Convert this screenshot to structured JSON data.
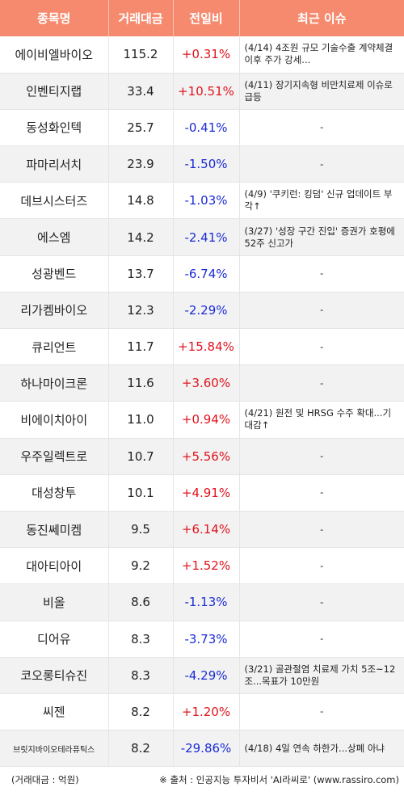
{
  "header": {
    "col_name": "종목명",
    "col_volume": "거래대금",
    "col_change": "전일비",
    "col_issue": "최근 이슈"
  },
  "rows": [
    {
      "name": "에이비엘바이오",
      "volume": "115.2",
      "change": "+0.31%",
      "direction": "up",
      "issue": "(4/14) 4조원 규모 기술수출 계약체결이후 주가 강세..."
    },
    {
      "name": "인벤티지랩",
      "volume": "33.4",
      "change": "+10.51%",
      "direction": "up",
      "issue": "(4/11) 장기지속형 비만치료제 이슈로 급등"
    },
    {
      "name": "동성화인텍",
      "volume": "25.7",
      "change": "-0.41%",
      "direction": "down",
      "issue": "-"
    },
    {
      "name": "파마리서치",
      "volume": "23.9",
      "change": "-1.50%",
      "direction": "down",
      "issue": "-"
    },
    {
      "name": "데브시스터즈",
      "volume": "14.8",
      "change": "-1.03%",
      "direction": "down",
      "issue": "(4/9) '쿠키런: 킹덤' 신규 업데이트 부각↑"
    },
    {
      "name": "에스엠",
      "volume": "14.2",
      "change": "-2.41%",
      "direction": "down",
      "issue": "(3/27) '성장 구간 진입' 증권가 호평에 52주 신고가"
    },
    {
      "name": "성광벤드",
      "volume": "13.7",
      "change": "-6.74%",
      "direction": "down",
      "issue": "-"
    },
    {
      "name": "리가켐바이오",
      "volume": "12.3",
      "change": "-2.29%",
      "direction": "down",
      "issue": "-"
    },
    {
      "name": "큐리언트",
      "volume": "11.7",
      "change": "+15.84%",
      "direction": "up",
      "issue": "-"
    },
    {
      "name": "하나마이크론",
      "volume": "11.6",
      "change": "+3.60%",
      "direction": "up",
      "issue": "-"
    },
    {
      "name": "비에이치아이",
      "volume": "11.0",
      "change": "+0.94%",
      "direction": "up",
      "issue": "(4/21) 원전 및 HRSG 수주 확대...기대감↑"
    },
    {
      "name": "우주일렉트로",
      "volume": "10.7",
      "change": "+5.56%",
      "direction": "up",
      "issue": "-"
    },
    {
      "name": "대성창투",
      "volume": "10.1",
      "change": "+4.91%",
      "direction": "up",
      "issue": "-"
    },
    {
      "name": "동진쎄미켐",
      "volume": "9.5",
      "change": "+6.14%",
      "direction": "up",
      "issue": "-"
    },
    {
      "name": "대아티아이",
      "volume": "9.2",
      "change": "+1.52%",
      "direction": "up",
      "issue": "-"
    },
    {
      "name": "비올",
      "volume": "8.6",
      "change": "-1.13%",
      "direction": "down",
      "issue": "-"
    },
    {
      "name": "디어유",
      "volume": "8.3",
      "change": "-3.73%",
      "direction": "down",
      "issue": "-"
    },
    {
      "name": "코오롱티슈진",
      "volume": "8.3",
      "change": "-4.29%",
      "direction": "down",
      "issue": "(3/21) 골관절염 치료제 가치 5조~12조...목표가 10만원"
    },
    {
      "name": "씨젠",
      "volume": "8.2",
      "change": "+1.20%",
      "direction": "up",
      "issue": "-"
    },
    {
      "name": "브릿지바이오테라퓨틱스",
      "volume": "8.2",
      "change": "-29.86%",
      "direction": "down",
      "issue": "(4/18) 4일 연속 하한가...상폐 아냐"
    }
  ],
  "footer": {
    "unit_note": "(거래대금 : 억원)",
    "source_note": "※ 출처 : 인공지능 투자비서 'AI라씨로' (www.rassiro.com)"
  },
  "colors": {
    "header_bg": "#f58a6e",
    "up": "#e0141e",
    "down": "#1a2bd6"
  }
}
